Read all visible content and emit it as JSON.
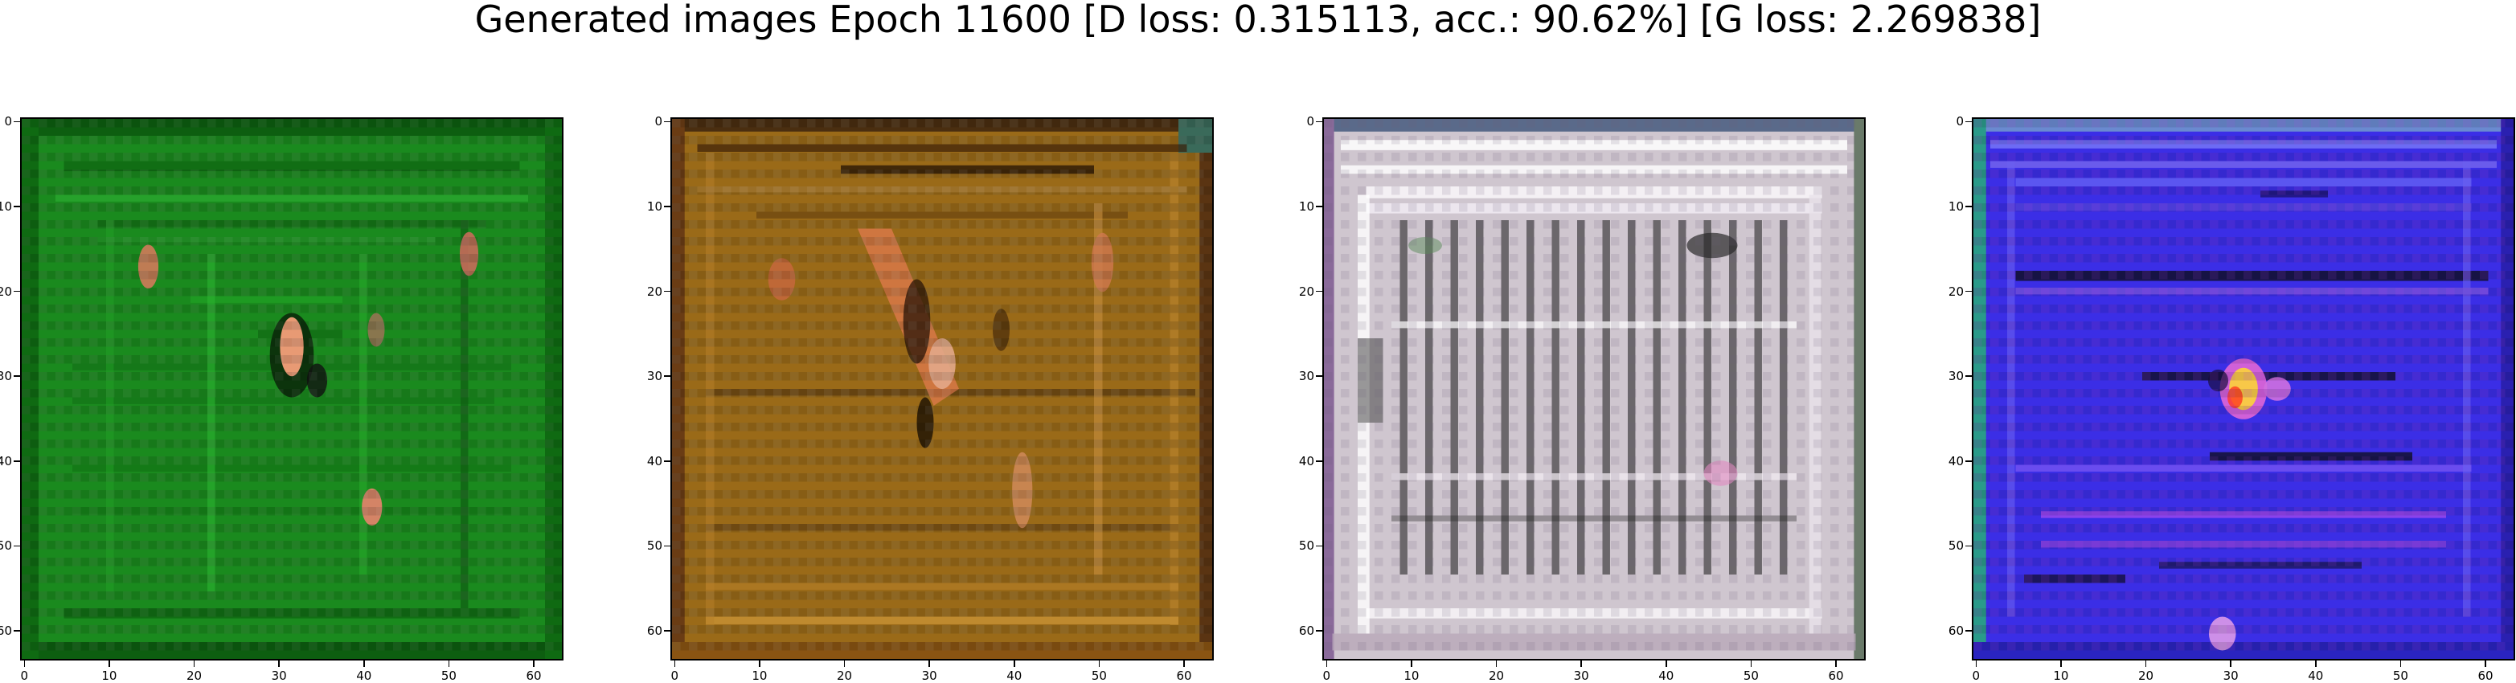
{
  "figure": {
    "title": "Generated images Epoch 11600 [D loss: 0.315113, acc.: 90.62%] [G loss: 2.269838]"
  },
  "axis_ticks": {
    "x": [
      "0",
      "10",
      "20",
      "30",
      "40",
      "50",
      "60"
    ],
    "y": [
      "0",
      "10",
      "20",
      "30",
      "40",
      "50",
      "60"
    ],
    "pixel_range": [
      0,
      63
    ]
  },
  "panels": [
    {
      "name": "generated-image-1",
      "dominant_color": "#1a8a1e",
      "content": "green field with small figures"
    },
    {
      "name": "generated-image-2",
      "dominant_color": "#9a6a18",
      "content": "brown/orange textured scene"
    },
    {
      "name": "generated-image-3",
      "dominant_color": "#cfc6cf",
      "content": "grey/pink vertical stripes"
    },
    {
      "name": "generated-image-4",
      "dominant_color": "#3b2ee6",
      "content": "blue field with central bright blob"
    }
  ]
}
